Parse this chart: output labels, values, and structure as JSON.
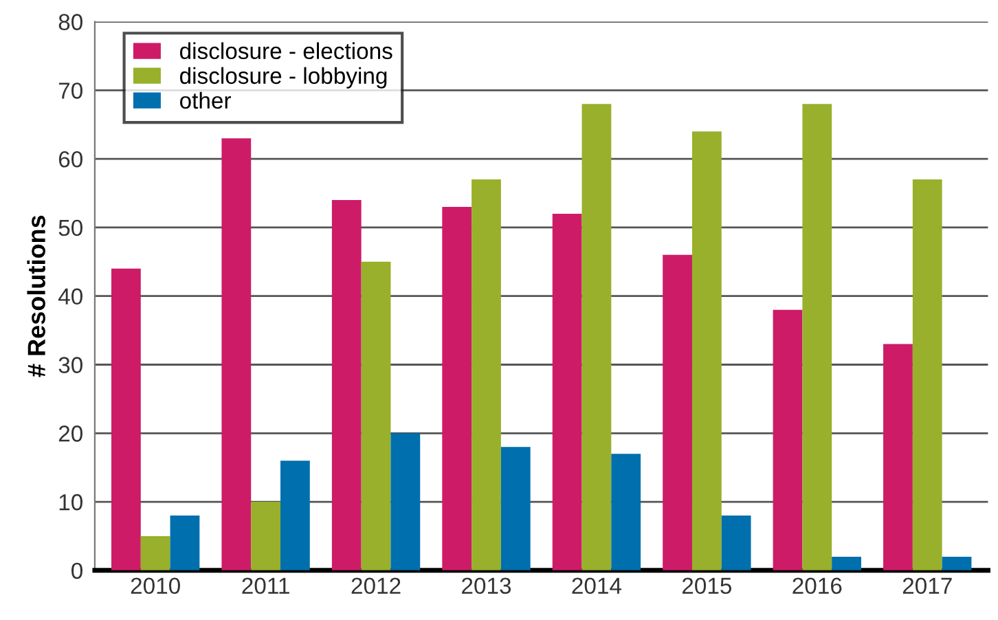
{
  "chart_data": {
    "type": "bar",
    "ylabel": "# Resolutions",
    "categories": [
      "2010",
      "2011",
      "2012",
      "2013",
      "2014",
      "2015",
      "2016",
      "2017"
    ],
    "series": [
      {
        "name": "disclosure - elections",
        "color": "#cd1b68",
        "values": [
          44,
          63,
          54,
          53,
          52,
          46,
          38,
          33
        ]
      },
      {
        "name": "disclosure - lobbying",
        "color": "#98b02b",
        "values": [
          5,
          10,
          45,
          57,
          68,
          64,
          68,
          57
        ]
      },
      {
        "name": "other",
        "color": "#006fad",
        "values": [
          8,
          16,
          20,
          18,
          17,
          8,
          2,
          2
        ]
      }
    ],
    "ylim": [
      0,
      80
    ],
    "yticks": [
      0,
      10,
      20,
      30,
      40,
      50,
      60,
      70,
      80
    ],
    "grid": "y",
    "legend": "top left"
  }
}
